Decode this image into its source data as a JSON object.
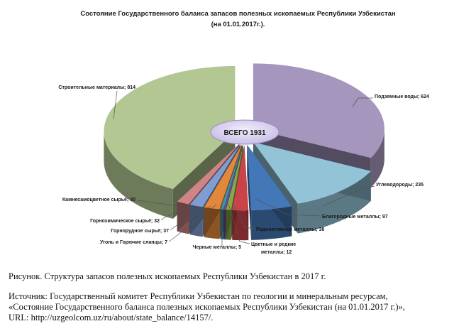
{
  "chart_data": {
    "type": "pie",
    "variant": "3d-exploded",
    "title": "Состояние Государственного баланса запасов полезных ископаемых Республики Узбекистан",
    "subtitle": "(на 01.01.2017г.).",
    "center_label": "ВСЕГО 1931",
    "total": 1931,
    "categories": [
      "Подземные воды",
      "Углеводороды",
      "Благородные металлы",
      "Радиоктивные металлы",
      "Цветные и редкие металлы",
      "Черные металлы",
      "Уголь и Горючие сланцы",
      "Горнорудное сырьё",
      "Горнохимическое сырьё",
      "Камнесамоцветное сырьё",
      "Строительные материалы"
    ],
    "values": [
      624,
      235,
      97,
      38,
      12,
      5,
      7,
      37,
      32,
      30,
      814
    ],
    "colors": [
      "#a596bd",
      "#93c3d6",
      "#4477b8",
      "#c84448",
      "#86a84a",
      "#6a4f93",
      "#3b95ad",
      "#e3883a",
      "#7f9dd0",
      "#cf8585",
      "#b2c792"
    ],
    "labels": [
      "Подземные воды; 624",
      "Углеводороды; 235",
      "Благородные металлы; 97",
      "Радиоктивные металлы; 38",
      "Цветные и редкие",
      "Черные металлы; 5",
      "Уголь и Горючие сланцы; 7",
      "Горнорудное сырьё; 37",
      "Горнохимическое сырьё; 32",
      "Камнесамоцветное сырьё; 30",
      "Строительные материалы; 814"
    ],
    "label_line2": {
      "4": "металлы; 12"
    },
    "legend": "none (data labels with leader lines)"
  },
  "title": {
    "line1": "Состояние Государственного баланса запасов полезных ископаемых Республики Узбекистан",
    "line2": "(на 01.01.2017г.)."
  },
  "caption": "Рисунок. Структура запасов полезных ископаемых Республики Узбекистан в 2017 г.",
  "source": {
    "line1": "Источник: Государственный  комитет Республики Узбекистан по геологии и минеральным ресурсам,",
    "line2": "«Состояние Государственного  баланса полезных ископаемых Республики Узбекистан (на 01.01.2017 г.)»,",
    "line3": "URL: http://uzgeolcom.uz/ru/about/state_balance/14157/."
  }
}
